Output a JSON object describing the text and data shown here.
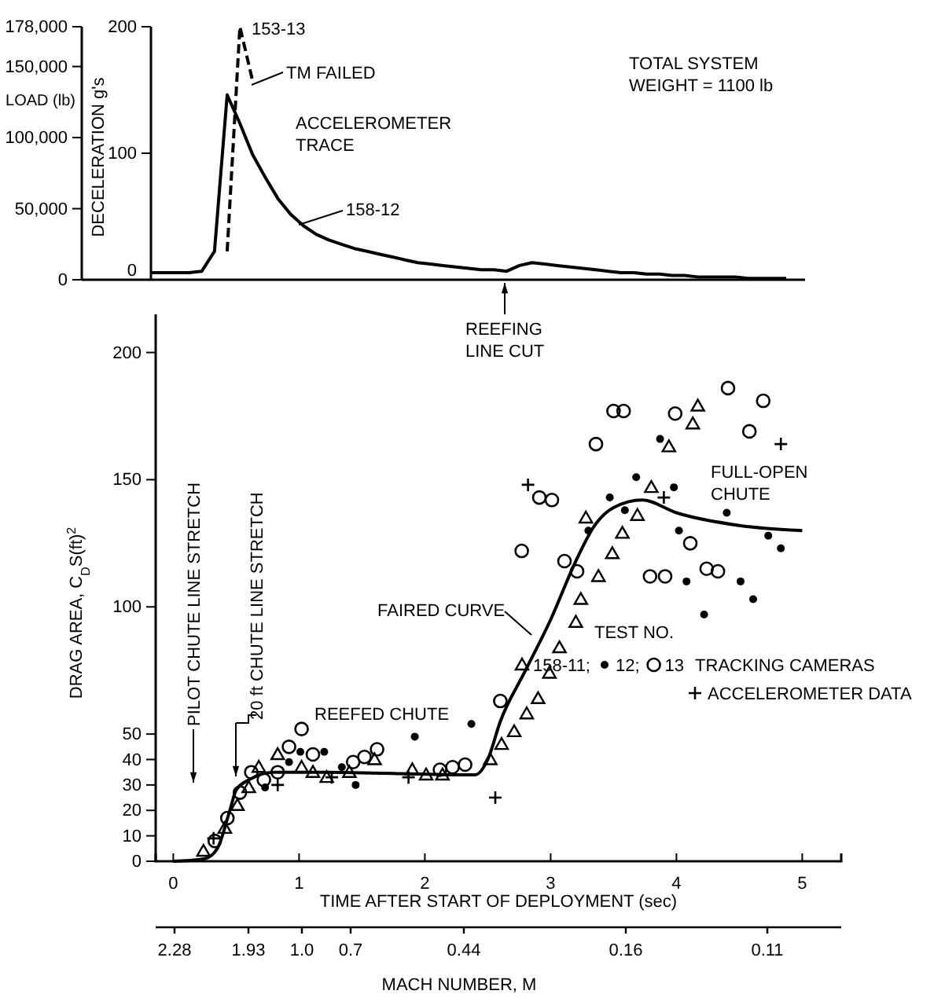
{
  "chart_data": [
    {
      "type": "line",
      "ylabel": "LOAD (lb)",
      "y2label": "DECELERATION g's",
      "annotations": [
        "TM FAILED",
        "ACCELEROMETER TRACE",
        "TOTAL SYSTEM WEIGHT = 1100 lb",
        "REEFING LINE CUT"
      ],
      "categories": [
        null,
        null,
        null,
        null,
        null,
        null,
        null,
        null,
        null,
        null,
        null,
        null,
        null,
        null,
        null,
        null,
        null,
        null,
        null,
        null,
        null,
        null,
        null,
        null,
        null,
        null,
        null,
        null,
        null,
        null,
        null,
        null,
        null,
        null,
        null,
        null,
        null,
        null,
        null,
        null,
        null,
        null,
        null,
        null,
        null,
        null,
        null,
        null,
        null,
        null,
        null
      ],
      "series": [
        {
          "name": "158-12",
          "color": "#000000",
          "line_style": "solid",
          "values": [
            5000,
            5000,
            5000,
            5000,
            6000,
            20000,
            130000,
            110000,
            88000,
            72000,
            57000,
            46000,
            38000,
            32000,
            28000,
            25000,
            22000,
            20000,
            18000,
            16000,
            14000,
            12000,
            11000,
            10000,
            9000,
            8000,
            7000,
            7000,
            6000,
            10000,
            12000,
            11000,
            10000,
            9000,
            8000,
            7000,
            6000,
            5000,
            5000,
            4000,
            4000,
            3000,
            3000,
            2000,
            2000,
            2000,
            2000,
            1000,
            1000,
            1000,
            1000
          ]
        },
        {
          "name": "153-13",
          "color": "#000000",
          "line_style": "dashed",
          "values": [
            null,
            null,
            null,
            null,
            null,
            null,
            20000,
            178000,
            140000,
            null,
            null,
            null,
            null,
            null,
            null,
            null,
            null,
            null,
            null,
            null,
            null,
            null,
            null,
            null,
            null,
            null,
            null,
            null,
            null,
            null,
            null,
            null,
            null,
            null,
            null,
            null,
            null,
            null,
            null,
            null,
            null,
            null,
            null,
            null,
            null,
            null,
            null,
            null,
            null,
            null,
            null
          ]
        }
      ],
      "ylim": [
        0,
        178000
      ],
      "yticks": [
        0,
        {
          "value": 50000,
          "label": "50,000"
        },
        {
          "value": 100000,
          "label": "100,000"
        },
        {
          "value": 150000,
          "label": "150,000"
        },
        {
          "value": 178000,
          "label": "178,000"
        }
      ],
      "y2lim": [
        0,
        200
      ],
      "y2ticks": [
        0,
        100,
        200
      ]
    },
    {
      "type": "scatter",
      "xlabel": "TIME AFTER START OF DEPLOYMENT (sec)",
      "ylabel": "DRAG AREA, C$_{D}$S(ft)$^{2}$",
      "legend_title": "TEST NO.",
      "legend": "right",
      "annotations": [
        "PILOT CHUTE LINE STRETCH",
        "20 ft CHUTE LINE STRETCH",
        "REEFED CHUTE",
        "FULL-OPEN CHUTE",
        "TRACKING CAMERAS",
        "FAIRED CURVE",
        "2.28",
        "1.93",
        "1.0",
        "0.7",
        "0.44",
        "0.16",
        "0.11",
        "MACH NUMBER, M"
      ],
      "xlim": [
        -0.14,
        5.31
      ],
      "xticks": [
        0,
        1,
        2,
        3,
        4,
        5
      ],
      "ylim": [
        0,
        215
      ],
      "yticks": [
        0,
        10,
        20,
        30,
        40,
        50,
        100,
        150,
        200
      ],
      "series": [
        {
          "type": "line",
          "color": "#000000",
          "x": [
            0,
            0.25,
            0.35,
            0.45,
            0.5,
            0.6,
            0.8,
            1.2,
            2.3,
            2.4,
            2.5,
            2.6,
            2.8,
            3.0,
            3.2,
            3.35,
            3.5,
            3.73,
            4.0,
            4.5,
            5.0
          ],
          "values": [
            0,
            1,
            5,
            20,
            28,
            32,
            35,
            35,
            34,
            34,
            40,
            55,
            75,
            95,
            118,
            132,
            139,
            142,
            137,
            132,
            130
          ]
        },
        {
          "name": "158-11;",
          "type": "scatter",
          "marker": "triangle",
          "color": "#000000",
          "x": [
            0.24,
            0.41,
            0.51,
            0.6,
            0.68,
            0.83,
            1.02,
            1.11,
            1.22,
            1.4,
            1.6,
            1.9,
            2.01,
            2.14,
            2.52,
            2.61,
            2.71,
            2.81,
            2.9,
            2.99,
            3.07,
            3.2,
            3.24,
            3.38,
            3.49,
            3.57,
            3.69,
            3.28,
            3.8,
            3.94,
            4.13,
            4.17
          ],
          "values": [
            4,
            13,
            22,
            29,
            37,
            42,
            37,
            35,
            33,
            35,
            40,
            36,
            34,
            34,
            40,
            46,
            51,
            58,
            64,
            74,
            84,
            94,
            103,
            112,
            121,
            129,
            136,
            135,
            147,
            163,
            172,
            179
          ]
        },
        {
          "name": "12;",
          "type": "scatter",
          "marker": "circle",
          "color": "#000000",
          "x": [
            0.73,
            0.92,
            1.01,
            1.2,
            1.34,
            1.45,
            1.92,
            2.37,
            3.87,
            3.68,
            3.47,
            3.98,
            3.59,
            3.3,
            4.02,
            4.4,
            4.73,
            4.83,
            4.08,
            4.51,
            4.61,
            4.22
          ],
          "values": [
            29,
            39,
            43,
            43,
            37,
            30,
            49,
            54,
            166,
            151,
            143,
            147,
            138,
            130,
            130,
            137,
            128,
            123,
            110,
            110,
            103,
            97
          ]
        },
        {
          "name": "13",
          "type": "scatter",
          "marker": "circle-open",
          "color": "#000000",
          "x": [
            0.33,
            0.43,
            0.53,
            0.62,
            0.72,
            0.83,
            0.92,
            1.02,
            1.11,
            1.43,
            1.52,
            1.62,
            2.12,
            2.22,
            2.32,
            2.6,
            4.41,
            4.69,
            3.5,
            3.58,
            3.99,
            4.58,
            3.36,
            2.91,
            3.01,
            2.77,
            3.11,
            3.21,
            3.79,
            3.91,
            4.11,
            4.24,
            4.33
          ],
          "values": [
            8,
            17,
            27,
            35,
            32,
            35,
            45,
            52,
            42,
            39,
            41,
            44,
            36,
            37,
            38,
            63,
            186,
            181,
            177,
            177,
            176,
            169,
            164,
            143,
            142,
            122,
            118,
            114,
            112,
            112,
            125,
            115,
            114
          ]
        },
        {
          "name": "ACCELEROMETER DATA",
          "type": "scatter",
          "marker": "cross",
          "color": "#000000",
          "x": [
            0.32,
            0.83,
            1.26,
            1.87,
            2.56,
            2.82,
            3.9,
            4.83
          ],
          "values": [
            9,
            30,
            33,
            33,
            25,
            148,
            143,
            164
          ]
        }
      ]
    }
  ]
}
